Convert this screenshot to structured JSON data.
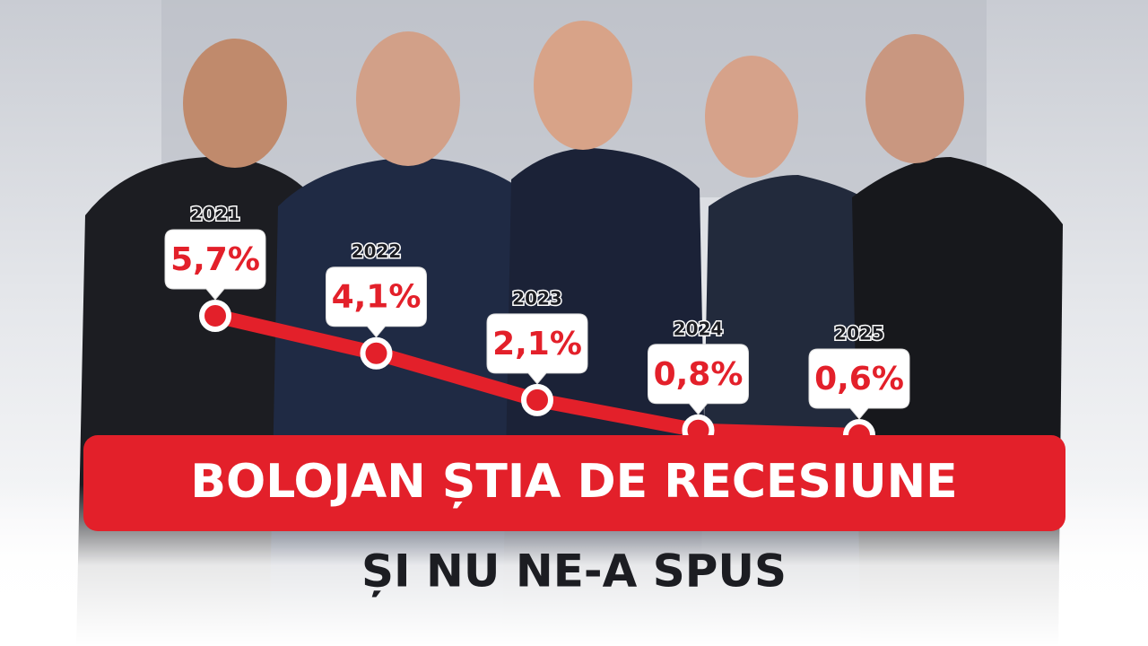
{
  "chart_data": {
    "type": "line",
    "title": "BOLOJAN ȘTIA DE RECESIUNE",
    "subtitle": "ȘI NU NE-A SPUS",
    "x": [
      2021,
      2022,
      2023,
      2024,
      2025
    ],
    "values": [
      5.7,
      4.1,
      2.1,
      0.8,
      0.6
    ],
    "value_labels": [
      "5,7%",
      "4,1%",
      "2,1%",
      "0,8%",
      "0,6%"
    ],
    "color": "#e3202a"
  }
}
